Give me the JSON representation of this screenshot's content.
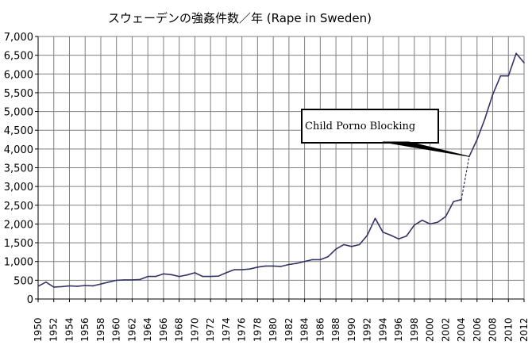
{
  "chart_data": {
    "type": "line",
    "title": "スウェーデンの強姦件数／年 (Rape in Sweden)",
    "xlabel": "",
    "ylabel": "",
    "ylim": [
      0,
      7000
    ],
    "xlim": [
      1950,
      2012
    ],
    "y_ticks": [
      "0",
      "500",
      "1,000",
      "1,500",
      "2,000",
      "2,500",
      "3,000",
      "3,500",
      "4,000",
      "4,500",
      "5,000",
      "5,500",
      "6,000",
      "6,500",
      "7,000"
    ],
    "x_ticks": [
      "1950",
      "1952",
      "1954",
      "1956",
      "1958",
      "1960",
      "1962",
      "1964",
      "1966",
      "1968",
      "1970",
      "1972",
      "1974",
      "1976",
      "1978",
      "1980",
      "1982",
      "1984",
      "1986",
      "1988",
      "1990",
      "1992",
      "1994",
      "1996",
      "1998",
      "2000",
      "2002",
      "2004",
      "2006",
      "2008",
      "2010",
      "2012"
    ],
    "grid": true,
    "line_color": "#333366",
    "series": [
      {
        "x": [
          1950,
          1951,
          1952,
          1953,
          1954,
          1955,
          1956,
          1957,
          1958,
          1959,
          1960,
          1961,
          1962,
          1963,
          1964,
          1965,
          1966,
          1967,
          1968,
          1969,
          1970,
          1971,
          1972,
          1973,
          1974,
          1975,
          1976,
          1977,
          1978,
          1979,
          1980,
          1981,
          1982,
          1983,
          1984,
          1985,
          1986,
          1987,
          1988,
          1989,
          1990,
          1991,
          1992,
          1993,
          1994,
          1995,
          1996,
          1997,
          1998,
          1999,
          2000,
          2001,
          2002,
          2003,
          2004
        ],
        "values": [
          340,
          450,
          320,
          330,
          350,
          340,
          360,
          350,
          400,
          450,
          500,
          510,
          510,
          520,
          600,
          600,
          670,
          650,
          600,
          640,
          700,
          600,
          600,
          610,
          700,
          780,
          780,
          800,
          850,
          880,
          880,
          870,
          920,
          950,
          1000,
          1050,
          1050,
          1130,
          1330,
          1450,
          1400,
          1450,
          1700,
          2150,
          1780,
          1700,
          1600,
          1680,
          1970,
          2100,
          2000,
          2050,
          2200,
          2600,
          2650
        ],
        "style": "solid"
      },
      {
        "x": [
          2004,
          2005
        ],
        "values": [
          2650,
          3800
        ],
        "style": "dashed"
      },
      {
        "x": [
          2005,
          2006,
          2007,
          2008,
          2009,
          2010,
          2011,
          2012
        ],
        "values": [
          3800,
          4250,
          4800,
          5450,
          5950,
          5950,
          6550,
          6300
        ],
        "style": "solid"
      }
    ],
    "annotation": {
      "text": "Child Porno Blocking",
      "target_x": 2005,
      "target_y": 3800
    }
  }
}
